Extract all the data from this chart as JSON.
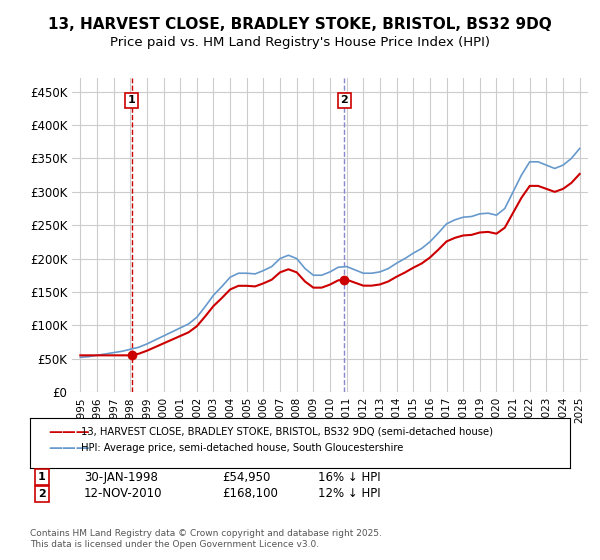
{
  "title": "13, HARVEST CLOSE, BRADLEY STOKE, BRISTOL, BS32 9DQ",
  "subtitle": "Price paid vs. HM Land Registry's House Price Index (HPI)",
  "title_fontsize": 11,
  "subtitle_fontsize": 9.5,
  "xlabel": "",
  "ylabel": "",
  "ylim": [
    0,
    470000
  ],
  "yticks": [
    0,
    50000,
    100000,
    150000,
    200000,
    250000,
    300000,
    350000,
    400000,
    450000
  ],
  "ytick_labels": [
    "£0",
    "£50K",
    "£100K",
    "£150K",
    "£200K",
    "£250K",
    "£300K",
    "£350K",
    "£400K",
    "£450K"
  ],
  "background_color": "#ffffff",
  "grid_color": "#cccccc",
  "sale1_date": "30-JAN-1998",
  "sale1_price": 54950,
  "sale1_label": "1",
  "sale1_pct": "16% ↓ HPI",
  "sale2_date": "12-NOV-2010",
  "sale2_price": 168100,
  "sale2_label": "2",
  "sale2_pct": "12% ↓ HPI",
  "legend_line1": "13, HARVEST CLOSE, BRADLEY STOKE, BRISTOL, BS32 9DQ (semi-detached house)",
  "legend_line2": "HPI: Average price, semi-detached house, South Gloucestershire",
  "line1_color": "#cc0000",
  "line2_color": "#6699cc",
  "footnote": "Contains HM Land Registry data © Crown copyright and database right 2025.\nThis data is licensed under the Open Government Licence v3.0.",
  "hpi_years": [
    1995,
    1995.5,
    1996,
    1996.5,
    1997,
    1997.5,
    1998,
    1998.5,
    1999,
    1999.5,
    2000,
    2000.5,
    2001,
    2001.5,
    2002,
    2002.5,
    2003,
    2003.5,
    2004,
    2004.5,
    2005,
    2005.5,
    2006,
    2006.5,
    2007,
    2007.5,
    2008,
    2008.5,
    2009,
    2009.5,
    2010,
    2010.5,
    2011,
    2011.5,
    2012,
    2012.5,
    2013,
    2013.5,
    2014,
    2014.5,
    2015,
    2015.5,
    2016,
    2016.5,
    2017,
    2017.5,
    2018,
    2018.5,
    2019,
    2019.5,
    2020,
    2020.5,
    2021,
    2021.5,
    2022,
    2022.5,
    2023,
    2023.5,
    2024,
    2024.5,
    2025
  ],
  "hpi_values": [
    52000,
    53000,
    55000,
    57000,
    59000,
    61000,
    64000,
    67000,
    72000,
    78000,
    84000,
    90000,
    96000,
    102000,
    112000,
    128000,
    145000,
    158000,
    172000,
    178000,
    178000,
    177000,
    182000,
    188000,
    200000,
    205000,
    200000,
    185000,
    175000,
    175000,
    180000,
    187000,
    188000,
    183000,
    178000,
    178000,
    180000,
    185000,
    193000,
    200000,
    208000,
    215000,
    225000,
    238000,
    252000,
    258000,
    262000,
    263000,
    267000,
    268000,
    265000,
    275000,
    300000,
    325000,
    345000,
    345000,
    340000,
    335000,
    340000,
    350000,
    365000
  ],
  "sale_years": [
    1998.08,
    2010.87
  ],
  "sale_prices": [
    54950,
    168100
  ],
  "xlim_start": 1994.5,
  "xlim_end": 2025.5,
  "xticks": [
    1995,
    1996,
    1997,
    1998,
    1999,
    2000,
    2001,
    2002,
    2003,
    2004,
    2005,
    2006,
    2007,
    2008,
    2009,
    2010,
    2011,
    2012,
    2013,
    2014,
    2015,
    2016,
    2017,
    2018,
    2019,
    2020,
    2021,
    2022,
    2023,
    2024,
    2025
  ]
}
